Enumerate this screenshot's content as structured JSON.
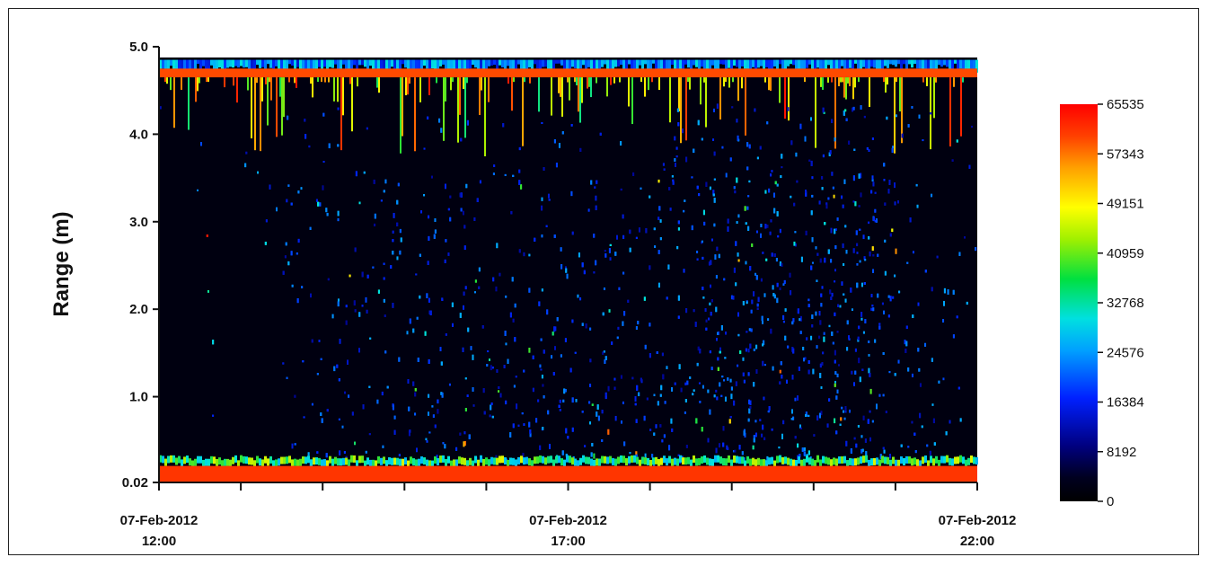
{
  "chart_data": {
    "type": "heatmap",
    "title": "",
    "xlabel": "",
    "ylabel": "Range (m)",
    "y_ticks": [
      "0.02",
      "1.0",
      "2.0",
      "3.0",
      "4.0",
      "5.0"
    ],
    "y_tick_values": [
      0.02,
      1.0,
      2.0,
      3.0,
      4.0,
      5.0
    ],
    "ylim": [
      0.02,
      5.0
    ],
    "x_ticks": [
      {
        "date": "07-Feb-2012",
        "time": "12:00"
      },
      {
        "date": "07-Feb-2012",
        "time": "17:00"
      },
      {
        "date": "07-Feb-2012",
        "time": "22:00"
      }
    ],
    "x_range_hours": [
      12,
      22
    ],
    "minor_x_ticks_hours": [
      12,
      13,
      14,
      15,
      16,
      17,
      18,
      19,
      20,
      21,
      22
    ],
    "colorbar": {
      "ticks": [
        "65535",
        "57343",
        "49151",
        "40959",
        "32768",
        "24576",
        "16384",
        "8192",
        "0"
      ],
      "range": [
        0,
        65535
      ],
      "colormap": "jet",
      "position": "right"
    },
    "features": {
      "surface_band_range_m": [
        4.65,
        4.75
      ],
      "bottom_band_range_m": [
        0.02,
        0.25
      ],
      "data_top_range_m": 4.85,
      "high_scatter_period_hours": [
        18.5,
        21.0
      ]
    }
  }
}
